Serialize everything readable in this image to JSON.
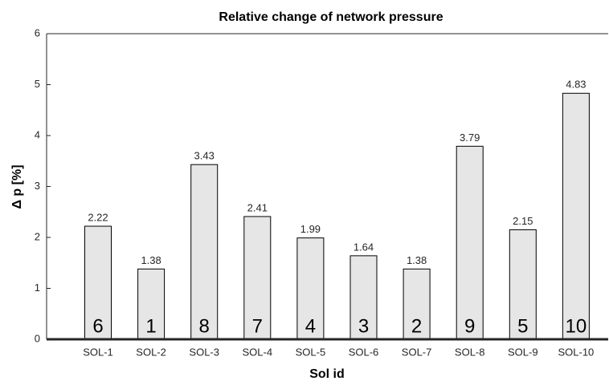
{
  "chart_data": {
    "type": "bar",
    "title": "Relative change of network pressure",
    "xlabel": "Sol id",
    "ylabel": "Δ p [%]",
    "categories": [
      "SOL-1",
      "SOL-2",
      "SOL-3",
      "SOL-4",
      "SOL-5",
      "SOL-6",
      "SOL-7",
      "SOL-8",
      "SOL-9",
      "SOL-10"
    ],
    "values": [
      2.22,
      1.38,
      3.43,
      2.41,
      1.99,
      1.64,
      1.38,
      3.79,
      2.15,
      4.83
    ],
    "ranks": [
      6,
      1,
      8,
      7,
      4,
      3,
      2,
      9,
      5,
      10
    ],
    "color": "#e6e6e6",
    "ylim": [
      0,
      6
    ],
    "yticks": [
      0,
      1,
      2,
      3,
      4,
      5,
      6
    ]
  }
}
